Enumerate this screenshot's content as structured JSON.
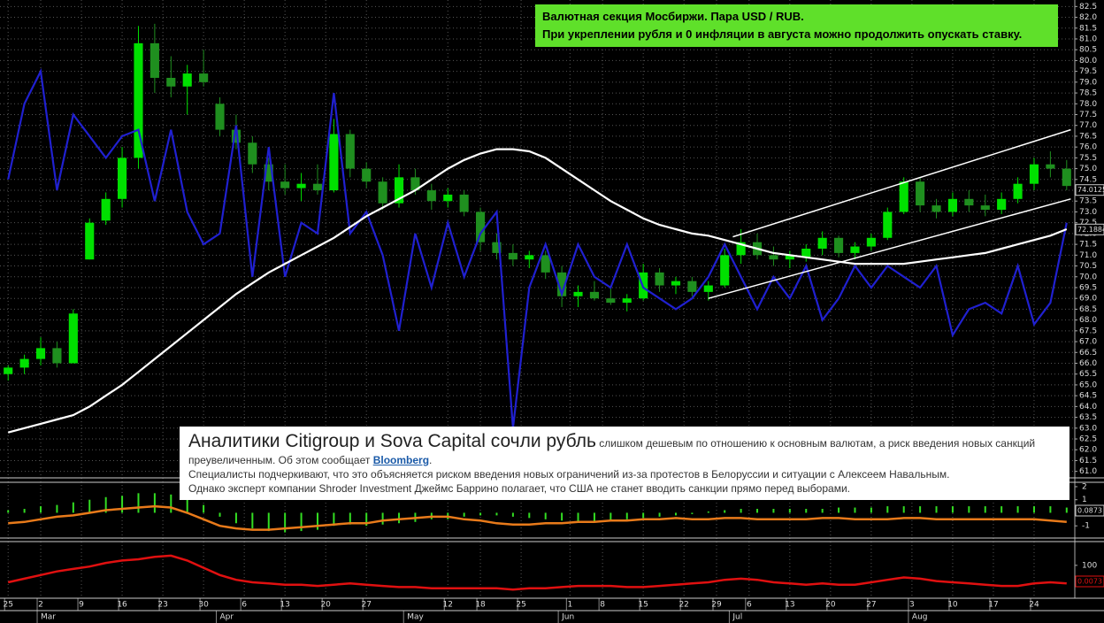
{
  "chart_data": {
    "type": "candlestick",
    "x": [
      1,
      3,
      5,
      7,
      9,
      11,
      13,
      15,
      17,
      19,
      21,
      23,
      25,
      27,
      29,
      31,
      33,
      35,
      37,
      39,
      41,
      43,
      45,
      47,
      49,
      51,
      53,
      55,
      57,
      59,
      61,
      63,
      65,
      67,
      69,
      71,
      73,
      75,
      77,
      79,
      81,
      83,
      85,
      87,
      89,
      91,
      93,
      95,
      97,
      99,
      101,
      103,
      105,
      107,
      109,
      111,
      113,
      115,
      117,
      119,
      121,
      123,
      125,
      127,
      129,
      131
    ],
    "open": [
      65.5,
      65.8,
      66.2,
      66.7,
      66.0,
      70.8,
      72.6,
      73.6,
      75.5,
      80.8,
      79.2,
      78.8,
      79.4,
      78.0,
      76.8,
      76.2,
      75.2,
      74.4,
      74.1,
      74.3,
      74.0,
      76.6,
      75.0,
      74.4,
      73.4,
      74.6,
      74.0,
      73.5,
      73.8,
      73.0,
      71.6,
      71.1,
      70.8,
      71.0,
      70.2,
      69.1,
      69.3,
      69.0,
      68.8,
      69.0,
      70.2,
      69.6,
      69.8,
      69.3,
      69.6,
      71.0,
      71.6,
      71.0,
      70.8,
      70.9,
      71.3,
      71.8,
      71.1,
      71.4,
      71.8,
      73.0,
      74.4,
      73.3,
      73.0,
      73.6,
      73.3,
      73.1,
      73.6,
      74.3,
      75.2,
      75.0
    ],
    "high": [
      65.9,
      66.4,
      67.2,
      67.0,
      68.5,
      72.7,
      73.9,
      76.0,
      81.6,
      81.7,
      80.2,
      79.8,
      80.5,
      78.3,
      77.5,
      76.5,
      75.5,
      75.2,
      74.8,
      75.2,
      77.3,
      76.8,
      75.3,
      74.6,
      75.2,
      75.0,
      74.3,
      74.1,
      74.0,
      73.2,
      72.0,
      71.5,
      71.2,
      71.2,
      70.5,
      69.6,
      69.8,
      69.6,
      69.2,
      70.6,
      70.4,
      70.0,
      70.0,
      69.8,
      71.3,
      72.2,
      72.0,
      71.4,
      71.2,
      71.5,
      72.1,
      71.9,
      71.6,
      72.0,
      73.2,
      74.6,
      74.6,
      73.6,
      73.9,
      74.0,
      73.8,
      73.9,
      74.6,
      75.5,
      75.8,
      75.4
    ],
    "low": [
      65.2,
      65.5,
      65.9,
      65.8,
      66.0,
      70.8,
      72.4,
      73.2,
      75.0,
      78.5,
      78.3,
      77.5,
      78.8,
      76.5,
      75.9,
      74.8,
      74.0,
      73.8,
      73.5,
      73.8,
      73.9,
      74.6,
      74.1,
      73.1,
      73.2,
      73.8,
      73.1,
      73.2,
      72.8,
      71.2,
      70.8,
      70.5,
      70.4,
      69.9,
      68.6,
      68.6,
      68.9,
      68.7,
      68.4,
      68.9,
      69.3,
      69.2,
      69.1,
      68.9,
      69.5,
      70.6,
      70.8,
      70.5,
      70.4,
      70.7,
      71.0,
      70.9,
      70.8,
      71.2,
      71.7,
      72.9,
      73.0,
      72.7,
      72.8,
      73.0,
      72.8,
      72.9,
      73.4,
      74.0,
      74.6,
      74.0
    ],
    "close": [
      65.8,
      66.2,
      66.7,
      66.0,
      68.3,
      72.5,
      73.6,
      75.5,
      80.8,
      79.2,
      78.8,
      79.4,
      79.0,
      76.8,
      76.2,
      75.2,
      74.4,
      74.1,
      74.3,
      74.0,
      76.6,
      75.0,
      74.4,
      73.4,
      74.6,
      74.0,
      73.5,
      73.8,
      73.0,
      71.6,
      71.1,
      70.8,
      71.0,
      70.2,
      69.1,
      69.3,
      69.0,
      68.8,
      69.0,
      70.2,
      69.6,
      69.8,
      69.3,
      69.6,
      71.0,
      71.6,
      71.0,
      70.8,
      71.0,
      71.3,
      71.8,
      71.1,
      71.4,
      71.8,
      73.0,
      74.4,
      73.3,
      73.0,
      73.6,
      73.3,
      73.1,
      73.6,
      74.3,
      75.2,
      75.0,
      74.2
    ],
    "up_color": "#00e000",
    "down_color": "#1f8f1f",
    "xlim": [
      0,
      132
    ],
    "ylim": [
      60.7,
      82.8
    ],
    "yticks": [
      {
        "value": 61,
        "label": "61.0"
      },
      61.5,
      {
        "value": 62,
        "label": "62.0"
      },
      62.5,
      {
        "value": 63,
        "label": "63.0"
      },
      63.5,
      {
        "value": 64,
        "label": "64.0"
      },
      64.5,
      {
        "value": 65,
        "label": "65.0"
      },
      65.5,
      {
        "value": 66,
        "label": "66.0"
      },
      66.5,
      {
        "value": 67,
        "label": "67.0"
      },
      67.5,
      {
        "value": 68,
        "label": "68.0"
      },
      68.5,
      {
        "value": 69,
        "label": "69.0"
      },
      69.5,
      {
        "value": 70,
        "label": "70.0"
      },
      70.5,
      {
        "value": 71,
        "label": "71.0"
      },
      71.5,
      {
        "value": 72,
        "label": "72.0"
      },
      72.5,
      {
        "value": 73,
        "label": "73.0"
      },
      73.5,
      {
        "value": 74,
        "label": "74.0"
      },
      74.5,
      {
        "value": 75,
        "label": "75.0"
      },
      75.5,
      {
        "value": 76,
        "label": "76.0"
      },
      76.5,
      {
        "value": 77,
        "label": "77.0"
      },
      77.5,
      {
        "value": 78,
        "label": "78.0"
      },
      78.5,
      {
        "value": 79,
        "label": "79.0"
      },
      79.5,
      {
        "value": 80,
        "label": "80.0"
      },
      80.5,
      {
        "value": 81,
        "label": "81.0"
      },
      81.5,
      {
        "value": 82,
        "label": "82.0"
      },
      82.5
    ],
    "xticks": [
      {
        "value": 1,
        "label": "25"
      },
      {
        "value": 5,
        "label": "2"
      },
      {
        "value": 10,
        "label": "9"
      },
      {
        "value": 15,
        "label": "16"
      },
      {
        "value": 20,
        "label": "23"
      },
      {
        "value": 25,
        "label": "30"
      },
      {
        "value": 30,
        "label": "6"
      },
      {
        "value": 35,
        "label": "13"
      },
      {
        "value": 40,
        "label": "20"
      },
      {
        "value": 45,
        "label": "27"
      },
      {
        "value": 55,
        "label": "12"
      },
      {
        "value": 59,
        "label": "18"
      },
      {
        "value": 64,
        "label": "25"
      },
      {
        "value": 70,
        "label": "1"
      },
      {
        "value": 74,
        "label": "8"
      },
      {
        "value": 79,
        "label": "15"
      },
      {
        "value": 84,
        "label": "22"
      },
      {
        "value": 88,
        "label": "29"
      },
      {
        "value": 92,
        "label": "6"
      },
      {
        "value": 97,
        "label": "13"
      },
      {
        "value": 102,
        "label": "20"
      },
      {
        "value": 107,
        "label": "27"
      },
      {
        "value": 112,
        "label": "3"
      },
      {
        "value": 117,
        "label": "10"
      },
      {
        "value": 122,
        "label": "17"
      },
      {
        "value": 127,
        "label": "24"
      }
    ],
    "month_ticks": [
      {
        "value": 5,
        "label": "Mar"
      },
      {
        "value": 27,
        "label": "Apr"
      },
      {
        "value": 50,
        "label": "May"
      },
      {
        "value": 69,
        "label": "Jun"
      },
      {
        "value": 90,
        "label": "Jul"
      },
      {
        "value": 112,
        "label": "Aug"
      }
    ],
    "grid": true,
    "series": [
      {
        "color": "#2020d0",
        "values": [
          74.5,
          78,
          79.5,
          74,
          77.5,
          76.5,
          75.5,
          76.5,
          76.8,
          73.5,
          76.8,
          73,
          71.5,
          72,
          77,
          70,
          76,
          70,
          72.5,
          72,
          78.5,
          72,
          73,
          71,
          67.5,
          72,
          69.5,
          72.5,
          70,
          72,
          73,
          63,
          69.5,
          71.5,
          69.2,
          71.5,
          70,
          69.5,
          71.5,
          69.5,
          69,
          68.5,
          69,
          70,
          71.5,
          70,
          68.5,
          70,
          69,
          70.5,
          68,
          69,
          70.5,
          69.5,
          70.5,
          70,
          69.5,
          70.5,
          67.3,
          68.5,
          68.8,
          68.3,
          70.5,
          67.8,
          68.8,
          72.5
        ]
      },
      {
        "color": "#ffffff",
        "values": [
          62.8,
          63,
          63.2,
          63.4,
          63.6,
          64,
          64.5,
          65,
          65.6,
          66.2,
          66.8,
          67.4,
          68,
          68.6,
          69.2,
          69.7,
          70.2,
          70.6,
          71,
          71.4,
          71.8,
          72.3,
          72.8,
          73.2,
          73.6,
          74,
          74.5,
          75,
          75.4,
          75.7,
          75.9,
          75.9,
          75.8,
          75.5,
          75,
          74.5,
          74,
          73.5,
          73.1,
          72.7,
          72.4,
          72.2,
          72,
          71.9,
          71.7,
          71.5,
          71.3,
          71.1,
          71,
          70.9,
          70.8,
          70.7,
          70.6,
          70.6,
          70.6,
          70.6,
          70.7,
          70.8,
          70.9,
          71,
          71.1,
          71.3,
          71.5,
          71.7,
          71.9,
          72.2
        ]
      }
    ],
    "trend_lines": [
      {
        "color": "#ffffff",
        "x": [
          87,
          131.5
        ],
        "values": [
          69.0,
          73.6
        ]
      },
      {
        "color": "#ffffff",
        "x": [
          90,
          131.5
        ],
        "values": [
          71.85,
          76.8
        ]
      }
    ],
    "last_labels": [
      74.0125,
      72.1884
    ],
    "oscillator": {
      "ylim": [
        -1.8,
        2.2
      ],
      "yticks": [
        2,
        1,
        -1
      ],
      "histogram": {
        "color": "#33dd22",
        "values": [
          0.2,
          0.3,
          0.5,
          0.6,
          0.8,
          1.0,
          1.2,
          1.3,
          1.5,
          1.5,
          1.4,
          1.0,
          0.6,
          -0.3,
          -0.8,
          -1.2,
          -1.4,
          -1.5,
          -1.4,
          -1.3,
          -1.0,
          -0.9,
          -1.0,
          -0.9,
          -0.8,
          -0.7,
          -0.5,
          -0.5,
          -0.3,
          -0.2,
          -0.2,
          -0.3,
          -0.4,
          -0.5,
          -0.6,
          -0.7,
          -0.7,
          -0.6,
          -0.5,
          -0.4,
          -0.3,
          -0.2,
          -0.1,
          0.1,
          0.2,
          0.3,
          0.3,
          0.3,
          0.3,
          0.3,
          0.3,
          0.4,
          0.4,
          0.4,
          0.5,
          0.5,
          0.5,
          0.5,
          0.5,
          0.5,
          0.5,
          0.5,
          0.5,
          0.5,
          0.5,
          0.4
        ]
      },
      "line": {
        "color": "#e87a1a",
        "values": [
          -0.8,
          -0.7,
          -0.5,
          -0.3,
          -0.2,
          0.0,
          0.2,
          0.3,
          0.4,
          0.5,
          0.4,
          0.0,
          -0.5,
          -1.0,
          -1.2,
          -1.3,
          -1.3,
          -1.2,
          -1.1,
          -1.0,
          -0.9,
          -0.8,
          -0.8,
          -0.6,
          -0.5,
          -0.4,
          -0.3,
          -0.3,
          -0.5,
          -0.6,
          -0.8,
          -0.9,
          -0.9,
          -0.8,
          -0.8,
          -0.7,
          -0.7,
          -0.6,
          -0.6,
          -0.5,
          -0.5,
          -0.4,
          -0.5,
          -0.5,
          -0.4,
          -0.4,
          -0.5,
          -0.5,
          -0.5,
          -0.5,
          -0.4,
          -0.4,
          -0.5,
          -0.5,
          -0.5,
          -0.4,
          -0.4,
          -0.5,
          -0.5,
          -0.5,
          -0.5,
          -0.5,
          -0.5,
          -0.5,
          -0.6,
          -0.7
        ]
      },
      "last_label": 0.0873
    },
    "indicator": {
      "ylim": [
        -80,
        180
      ],
      "yticks": [
        100
      ],
      "line": {
        "color": "#e01010",
        "values": [
          30,
          45,
          60,
          75,
          85,
          95,
          110,
          120,
          125,
          135,
          140,
          120,
          90,
          60,
          40,
          30,
          25,
          20,
          20,
          15,
          20,
          25,
          20,
          15,
          10,
          10,
          5,
          5,
          5,
          5,
          5,
          0,
          5,
          5,
          10,
          15,
          15,
          15,
          10,
          10,
          15,
          20,
          25,
          30,
          40,
          45,
          40,
          30,
          25,
          20,
          25,
          20,
          20,
          30,
          40,
          50,
          45,
          35,
          30,
          25,
          20,
          15,
          15,
          25,
          30,
          25
        ]
      },
      "last_label": 0.0073
    }
  },
  "annotations": {
    "box_lines": [
      "Валютная секция Мосбиржи. Пара USD / RUB.",
      "При укреплении рубля и 0 инфляции в августа можно продолжить опускать ставку."
    ],
    "article": {
      "headline": "Аналитики Citigroup и Sova Capital сочли рубль",
      "text_1": "слишком дешевым по отношению к основным валютам, а риск введения новых санкций преувеличенным. Об этом сообщает",
      "link": "Bloomberg",
      "text_2": ".",
      "line_2": "Специалисты подчеркивают, что это объясняется риском введения новых ограничений из-за протестов в Белоруссии и ситуации с Алексеем Навальным.",
      "line_3": "Однако эксперт компании Shroder Investment Джеймс Баррино полагает, что США не станет вводить санкции прямо перед выборами."
    }
  }
}
